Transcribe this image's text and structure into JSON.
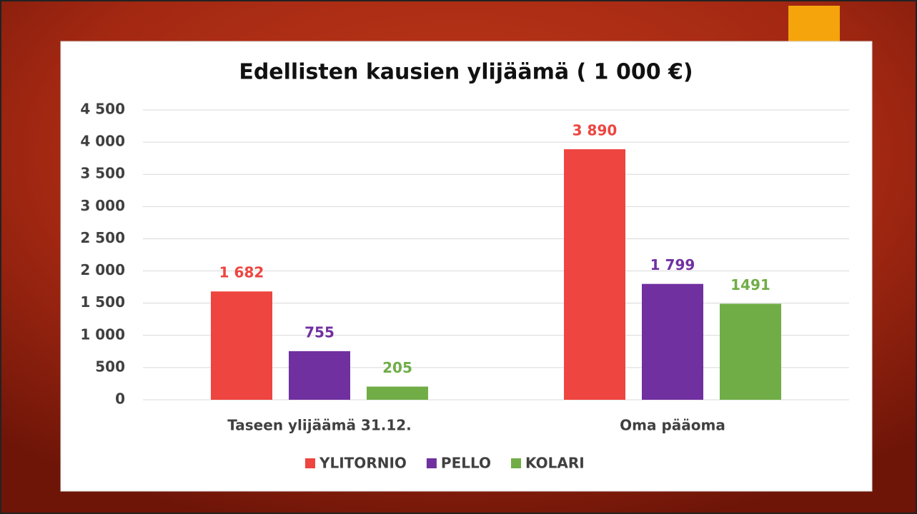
{
  "chart_data": {
    "type": "bar",
    "title": "Edellisten kausien ylijäämä ( 1 000 €)",
    "categories": [
      "Taseen ylijäämä 31.12.",
      "Oma pääoma"
    ],
    "series": [
      {
        "name": "YLITORNIO",
        "color": "#ee4540",
        "values": [
          1682,
          3890
        ],
        "value_labels": [
          "1 682",
          "3 890"
        ]
      },
      {
        "name": "PELLO",
        "color": "#7030a0",
        "values": [
          755,
          1799
        ],
        "value_labels": [
          "755",
          "1 799"
        ]
      },
      {
        "name": "KOLARI",
        "color": "#70ad47",
        "values": [
          205,
          1491
        ],
        "value_labels": [
          "205",
          "1491"
        ]
      }
    ],
    "ylim": [
      0,
      4500
    ],
    "yticks": [
      0,
      500,
      {
        "value": 1000,
        "label": "1 000"
      },
      {
        "value": 1500,
        "label": "1 500"
      },
      {
        "value": 2000,
        "label": "2 000"
      },
      {
        "value": 2500,
        "label": "2 500"
      },
      {
        "value": 3000,
        "label": "3 000"
      },
      {
        "value": 3500,
        "label": "3 500"
      },
      {
        "value": 4000,
        "label": "4 000"
      },
      {
        "value": 4500,
        "label": "4 500"
      }
    ],
    "grid": true,
    "legend": "bottom"
  }
}
